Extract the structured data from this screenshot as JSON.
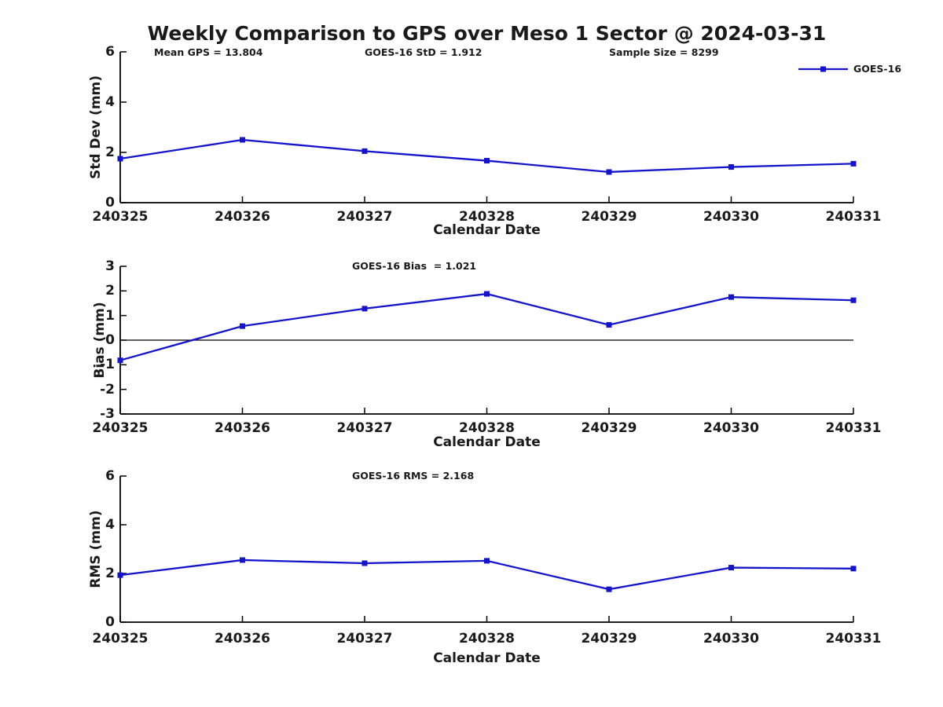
{
  "figure": {
    "title": "Weekly Comparison to GPS over Meso 1 Sector @ 2024-03-31",
    "background": "#ffffff"
  },
  "legend": {
    "label": "GOES-16",
    "color": "#1414CC"
  },
  "chart_data": [
    {
      "type": "line",
      "name": "std-dev",
      "annotations": [
        "Mean GPS = 13.804",
        "GOES-16 StD = 1.912",
        "Sample Size = 8299"
      ],
      "ylabel": "Std Dev (mm)",
      "xlabel": "Calendar Date",
      "ylim": [
        0,
        6
      ],
      "yticks": [
        0,
        2,
        4,
        6
      ],
      "categories": [
        "240325",
        "240326",
        "240327",
        "240328",
        "240329",
        "240330",
        "240331"
      ],
      "series": [
        {
          "name": "GOES-16",
          "color": "#1414CC",
          "marker": "square",
          "values": [
            1.75,
            2.5,
            2.05,
            1.67,
            1.22,
            1.42,
            1.55
          ]
        }
      ],
      "zero_line": false,
      "grid": false,
      "legend_position": "top-right"
    },
    {
      "type": "line",
      "name": "bias",
      "annotations": [
        "GOES-16 Bias  = 1.021"
      ],
      "ylabel": "Bias (mm)",
      "xlabel": "Calendar Date",
      "ylim": [
        -3,
        3
      ],
      "yticks": [
        -3,
        -2,
        -1,
        0,
        1,
        2,
        3
      ],
      "categories": [
        "240325",
        "240326",
        "240327",
        "240328",
        "240329",
        "240330",
        "240331"
      ],
      "series": [
        {
          "name": "GOES-16",
          "color": "#1414CC",
          "marker": "square",
          "values": [
            -0.82,
            0.57,
            1.28,
            1.88,
            0.62,
            1.75,
            1.62
          ]
        }
      ],
      "zero_line": true,
      "grid": false
    },
    {
      "type": "line",
      "name": "rms",
      "annotations": [
        "GOES-16 RMS = 2.168"
      ],
      "ylabel": "RMS (mm)",
      "xlabel": "Calendar Date",
      "ylim": [
        0,
        6
      ],
      "yticks": [
        0,
        2,
        4,
        6
      ],
      "categories": [
        "240325",
        "240326",
        "240327",
        "240328",
        "240329",
        "240330",
        "240331"
      ],
      "series": [
        {
          "name": "GOES-16",
          "color": "#1414CC",
          "marker": "square",
          "values": [
            1.93,
            2.55,
            2.42,
            2.52,
            1.35,
            2.24,
            2.2
          ]
        }
      ],
      "zero_line": false,
      "grid": false
    }
  ]
}
